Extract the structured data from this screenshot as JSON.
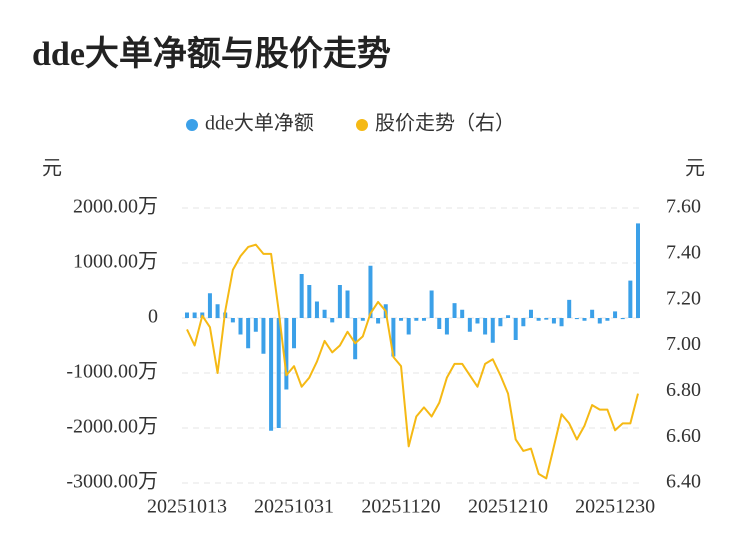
{
  "chart_data": {
    "type": "bar-line",
    "title": "dde大单净额与股价走势",
    "y_label": "元",
    "y2_label": "元",
    "categories": [
      "20251013",
      null,
      null,
      null,
      null,
      null,
      null,
      null,
      null,
      null,
      null,
      null,
      null,
      null,
      "20251031",
      null,
      null,
      null,
      null,
      null,
      null,
      null,
      null,
      null,
      null,
      null,
      null,
      null,
      "20251120",
      null,
      null,
      null,
      null,
      null,
      null,
      null,
      null,
      null,
      null,
      null,
      null,
      null,
      "20251210",
      null,
      null,
      null,
      null,
      null,
      null,
      null,
      null,
      null,
      null,
      null,
      null,
      null,
      "20251230",
      null,
      null,
      null
    ],
    "series": [
      {
        "name": "dde大单净额",
        "type": "bar",
        "color": "#3ba0e8",
        "values": [
          100,
          100,
          100,
          450,
          250,
          100,
          -80,
          -300,
          -550,
          -250,
          -650,
          -2050,
          -2000,
          -1300,
          -550,
          800,
          600,
          300,
          150,
          -80,
          600,
          500,
          -750,
          -50,
          950,
          -100,
          250,
          -700,
          -50,
          -300,
          -50,
          -50,
          500,
          -200,
          -300,
          270,
          150,
          -250,
          -100,
          -300,
          -450,
          -150,
          50,
          -400,
          -150,
          150,
          -50,
          -30,
          -100,
          -150,
          330,
          -20,
          -50,
          150,
          -100,
          -50,
          120,
          -20,
          680,
          1720
        ]
      },
      {
        "name": "股价走势（右）",
        "type": "line",
        "axis": "y2",
        "color": "#f5b914",
        "values": [
          7.07,
          7.0,
          7.13,
          7.08,
          6.88,
          7.15,
          7.33,
          7.39,
          7.43,
          7.44,
          7.4,
          7.4,
          7.15,
          6.87,
          6.91,
          6.82,
          6.86,
          6.93,
          7.02,
          6.97,
          7.0,
          7.06,
          7.01,
          7.04,
          7.14,
          7.19,
          7.15,
          6.95,
          6.91,
          6.56,
          6.69,
          6.73,
          6.69,
          6.75,
          6.86,
          6.92,
          6.92,
          6.87,
          6.82,
          6.92,
          6.94,
          6.87,
          6.79,
          6.59,
          6.54,
          6.55,
          6.44,
          6.42,
          6.56,
          6.7,
          6.66,
          6.59,
          6.65,
          6.74,
          6.72,
          6.72,
          6.63,
          6.66,
          6.66,
          6.79
        ]
      }
    ],
    "ylim": [
      -3000,
      2000
    ],
    "yticks": [
      {
        "value": -3000,
        "label": "-3000.00万"
      },
      {
        "value": -2000,
        "label": "-2000.00万"
      },
      {
        "value": -1000,
        "label": "-1000.00万"
      },
      0,
      {
        "value": 1000,
        "label": "1000.00万"
      },
      {
        "value": 2000,
        "label": "2000.00万"
      }
    ],
    "y2lim": [
      6.4,
      7.6
    ],
    "y2ticks": [
      {
        "value": 6.4,
        "label": "6.40"
      },
      {
        "value": 6.6,
        "label": "6.60"
      },
      {
        "value": 6.8,
        "label": "6.80"
      },
      {
        "value": 7.0,
        "label": "7.00"
      },
      {
        "value": 7.2,
        "label": "7.20"
      },
      {
        "value": 7.4,
        "label": "7.40"
      },
      {
        "value": 7.6,
        "label": "7.60"
      }
    ],
    "grid": true,
    "legend": "top"
  }
}
